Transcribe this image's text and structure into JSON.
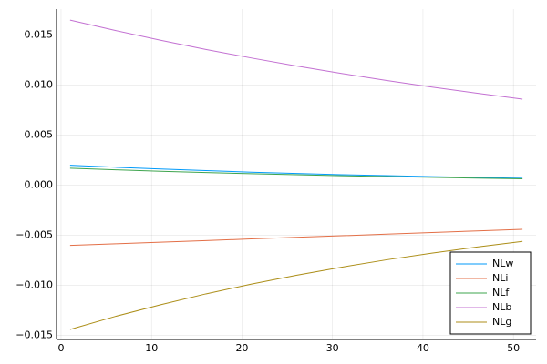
{
  "chart_data": {
    "type": "line",
    "x": [
      1,
      6,
      11,
      16,
      21,
      26,
      31,
      36,
      41,
      46,
      51
    ],
    "series": [
      {
        "name": "NLw",
        "color": "#009afa",
        "values": [
          0.002,
          0.0018,
          0.00162,
          0.00146,
          0.00131,
          0.00118,
          0.00106,
          0.00096,
          0.00086,
          0.00078,
          0.0007
        ]
      },
      {
        "name": "NLi",
        "color": "#e36f47",
        "values": [
          -0.006,
          -0.00584,
          -0.00568,
          -0.00552,
          -0.00536,
          -0.0052,
          -0.00504,
          -0.00488,
          -0.00472,
          -0.00456,
          -0.0044
        ]
      },
      {
        "name": "NLf",
        "color": "#3ea44e",
        "values": [
          0.0017,
          0.00154,
          0.0014,
          0.00127,
          0.00116,
          0.00105,
          0.00095,
          0.00087,
          0.00079,
          0.00071,
          0.00065
        ]
      },
      {
        "name": "NLb",
        "color": "#c371d2",
        "values": [
          0.0165,
          0.01546,
          0.01449,
          0.01357,
          0.01272,
          0.01192,
          0.01117,
          0.01046,
          0.0098,
          0.00919,
          0.0086
        ]
      },
      {
        "name": "NLg",
        "color": "#ac8e18",
        "values": [
          -0.0144,
          -0.0131,
          -0.01193,
          -0.01085,
          -0.00988,
          -0.00899,
          -0.00818,
          -0.00744,
          -0.00677,
          -0.00616,
          -0.0056
        ]
      }
    ],
    "xlim": [
      -0.5,
      52.5
    ],
    "xticks": [
      0,
      10,
      20,
      30,
      40,
      50
    ],
    "ylim": [
      -0.0154,
      0.0176
    ],
    "yticks": [
      {
        "value": -0.015,
        "label": "−0.015"
      },
      {
        "value": -0.01,
        "label": "−0.010"
      },
      {
        "value": -0.005,
        "label": "−0.005"
      },
      {
        "value": 0,
        "label": "0.000"
      },
      {
        "value": 0.005,
        "label": "0.005"
      },
      {
        "value": 0.01,
        "label": "0.010"
      },
      {
        "value": 0.015,
        "label": "0.015"
      }
    ],
    "grid": true,
    "legend": "bottom-right"
  }
}
